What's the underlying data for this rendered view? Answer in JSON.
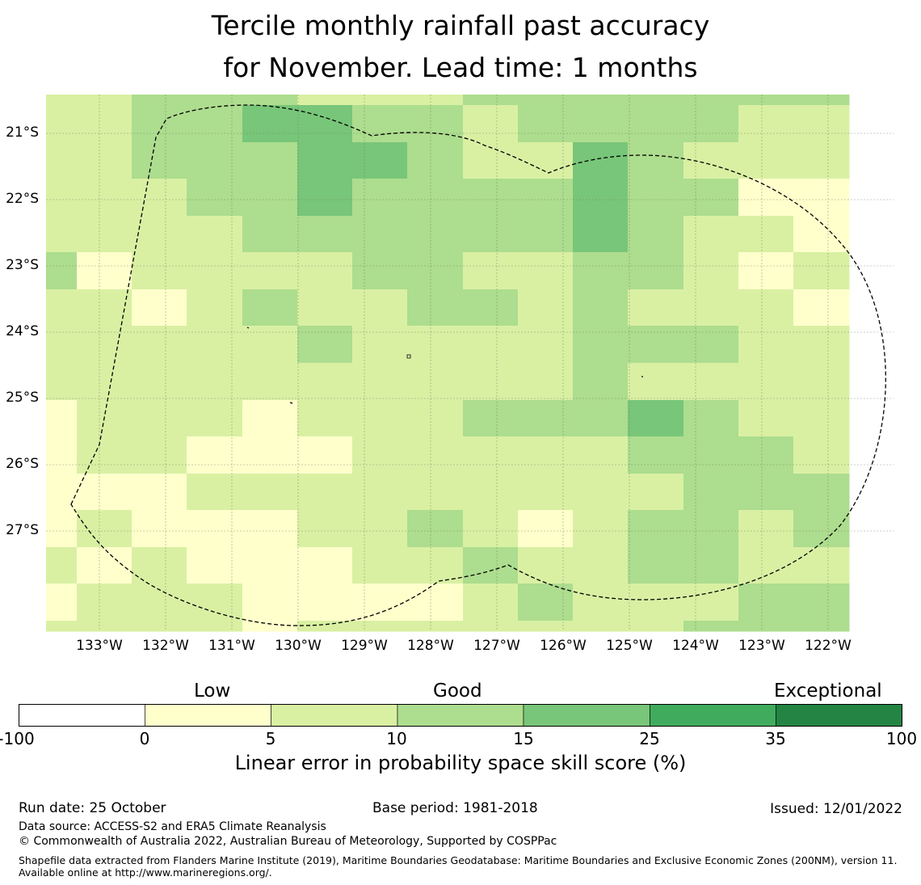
{
  "title": {
    "line1": "Tercile monthly rainfall past accuracy",
    "line2": "for November. Lead time: 1 months"
  },
  "map": {
    "latitude_labels": [
      "21°S",
      "22°S",
      "23°S",
      "24°S",
      "25°S",
      "26°S",
      "27°S"
    ],
    "longitude_labels": [
      "133°W",
      "132°W",
      "131°W",
      "130°W",
      "129°W",
      "128°W",
      "127°W",
      "126°W",
      "125°W",
      "124°W",
      "123°W",
      "122°W"
    ],
    "grid_levels": [
      [
        1,
        1,
        2,
        2,
        2,
        1,
        1,
        1,
        2,
        2,
        2,
        2,
        2,
        2,
        2
      ],
      [
        1,
        1,
        2,
        2,
        3,
        3,
        2,
        2,
        1,
        2,
        2,
        2,
        2,
        1,
        1
      ],
      [
        1,
        1,
        2,
        2,
        2,
        3,
        3,
        2,
        1,
        1,
        3,
        2,
        1,
        1,
        1
      ],
      [
        1,
        1,
        1,
        2,
        2,
        3,
        2,
        2,
        2,
        2,
        3,
        2,
        2,
        0,
        0
      ],
      [
        1,
        1,
        1,
        1,
        2,
        2,
        2,
        2,
        2,
        2,
        3,
        2,
        1,
        1,
        0
      ],
      [
        2,
        0,
        1,
        1,
        1,
        1,
        2,
        2,
        1,
        1,
        2,
        2,
        1,
        0,
        1
      ],
      [
        1,
        1,
        0,
        1,
        2,
        1,
        1,
        2,
        2,
        1,
        2,
        1,
        1,
        1,
        0
      ],
      [
        1,
        1,
        1,
        1,
        1,
        2,
        1,
        1,
        1,
        1,
        2,
        2,
        2,
        1,
        1
      ],
      [
        1,
        1,
        1,
        1,
        1,
        1,
        1,
        1,
        1,
        1,
        2,
        1,
        1,
        1,
        1
      ],
      [
        0,
        1,
        1,
        1,
        0,
        1,
        1,
        1,
        2,
        2,
        2,
        3,
        2,
        1,
        1
      ],
      [
        0,
        1,
        1,
        0,
        0,
        0,
        1,
        1,
        1,
        1,
        1,
        2,
        2,
        2,
        1
      ],
      [
        0,
        0,
        0,
        1,
        1,
        1,
        1,
        1,
        1,
        1,
        1,
        1,
        2,
        2,
        2
      ],
      [
        0,
        1,
        0,
        0,
        0,
        1,
        1,
        2,
        1,
        0,
        1,
        2,
        2,
        1,
        2
      ],
      [
        1,
        0,
        1,
        0,
        0,
        0,
        1,
        1,
        2,
        1,
        1,
        2,
        2,
        1,
        1
      ],
      [
        0,
        1,
        1,
        1,
        0,
        0,
        0,
        0,
        1,
        2,
        1,
        1,
        1,
        2,
        2
      ],
      [
        1,
        1,
        1,
        1,
        0,
        1,
        1,
        1,
        1,
        1,
        1,
        1,
        2,
        2,
        2
      ]
    ],
    "boundary": "Exclusive economic zone boundary"
  },
  "colorbar": {
    "categories": [
      {
        "name": "Low",
        "at": 2.5
      },
      {
        "name": "Good",
        "at": 10
      },
      {
        "name": "Exceptional",
        "at": 30
      }
    ],
    "ticks": [
      "-100",
      "0",
      "5",
      "10",
      "15",
      "25",
      "35",
      "100"
    ],
    "colors": [
      "#ffffff",
      "#ffffcc",
      "#d9f0a3",
      "#addd8e",
      "#78c679",
      "#41ab5d",
      "#238443"
    ],
    "label": "Linear error in probability space skill score (%)"
  },
  "legend_colors": {
    "0": "#ffffcc",
    "1": "#d9f0a3",
    "2": "#addd8e",
    "3": "#78c679"
  },
  "footer": {
    "run_date": "Run date: 25 October",
    "base_period": "Base period: 1981-2018",
    "issued": "Issued: 12/01/2022",
    "data_source": "Data source: ACCESS-S2 and ERA5 Climate Reanalysis",
    "copyright": "© Commonwealth of Australia 2022, Australian Bureau of Meteorology, Supported by COSPPac",
    "shapefile": "Shapefile data extracted from Flanders Marine Institute (2019), Maritime Boundaries Geodatabase: Maritime Boundaries and Exclusive Economic Zones (200NM), version 11. Available online at http://www.marineregions.org/."
  }
}
